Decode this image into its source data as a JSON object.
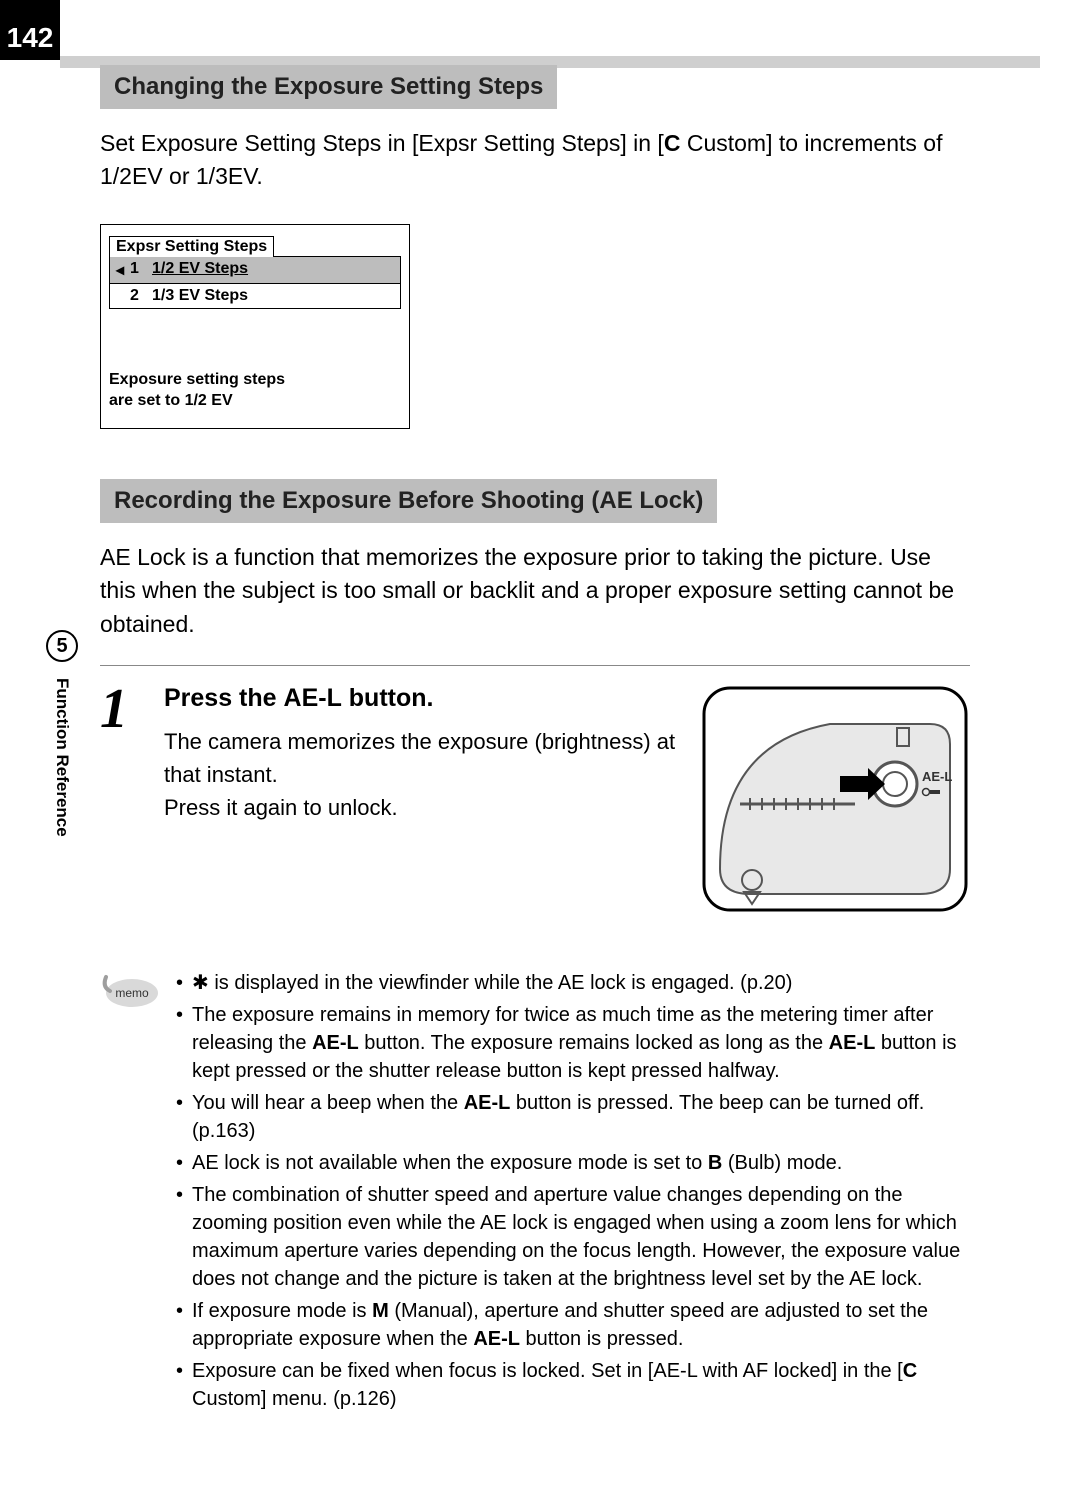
{
  "page_number": "142",
  "chapter_number": "5",
  "chapter_label": "Function Reference",
  "section1": {
    "title": "Changing the Exposure Setting Steps",
    "body_parts": [
      "Set Exposure Setting Steps in [Expsr Setting Steps] in [",
      "C",
      " Custom] to increments of 1/2EV or 1/3EV."
    ],
    "menu": {
      "tab": "Expsr Setting Steps",
      "item1_num": "1",
      "item1_label": "1/2 EV Steps",
      "item2_num": "2",
      "item2_label": "1/3 EV Steps",
      "info_line1": "Exposure setting steps",
      "info_line2": "are set to 1/2 EV"
    }
  },
  "section2": {
    "title": "Recording the Exposure Before Shooting (AE Lock)",
    "body": "AE Lock is a function that memorizes the exposure prior to taking the picture. Use this when the subject is too small or backlit and a proper exposure setting cannot be obtained.",
    "step_num": "1",
    "step_title_parts": [
      "Press the ",
      "AE-L",
      " button."
    ],
    "step_text_line1": "The camera memorizes the exposure (brightness) at that instant.",
    "step_text_line2": "Press it again to unlock.",
    "illust_label_top": "AE-L"
  },
  "memo": {
    "badge": "memo",
    "items": [
      {
        "parts": [
          "✱ is displayed in the viewfinder while the AE lock is engaged. (p.20)"
        ]
      },
      {
        "parts": [
          "The exposure remains in memory for twice as much time as the metering timer after releasing the ",
          {
            "b": "AE-L"
          },
          " button. The exposure remains locked as long as the ",
          {
            "b": "AE-L"
          },
          " button is kept pressed or the shutter release button is kept pressed halfway."
        ]
      },
      {
        "parts": [
          "You will hear a beep when the ",
          {
            "b": "AE-L"
          },
          " button is pressed. The beep can be turned off. (p.163)"
        ]
      },
      {
        "parts": [
          "AE lock is not available when the exposure mode is set to ",
          {
            "b": "B"
          },
          " (Bulb) mode."
        ]
      },
      {
        "parts": [
          "The combination of shutter speed and aperture value changes depending on the zooming position even while the AE lock is engaged when using a zoom lens for which maximum aperture varies depending on the focus length. However, the exposure value does not change and the picture is taken at the brightness level set by the AE lock."
        ]
      },
      {
        "parts": [
          "If exposure mode is ",
          {
            "b": "M"
          },
          " (Manual), aperture and shutter speed are adjusted to set the appropriate exposure when the ",
          {
            "b": "AE-L"
          },
          " button is pressed."
        ]
      },
      {
        "parts": [
          "Exposure can be fixed when focus is locked. Set in [AE-L with AF locked] in the [",
          {
            "b": "C"
          },
          " Custom] menu. (p.126)"
        ]
      }
    ]
  },
  "colors": {
    "title_bg": "#bdbdbd",
    "strip_bg": "#cfcfcf"
  }
}
